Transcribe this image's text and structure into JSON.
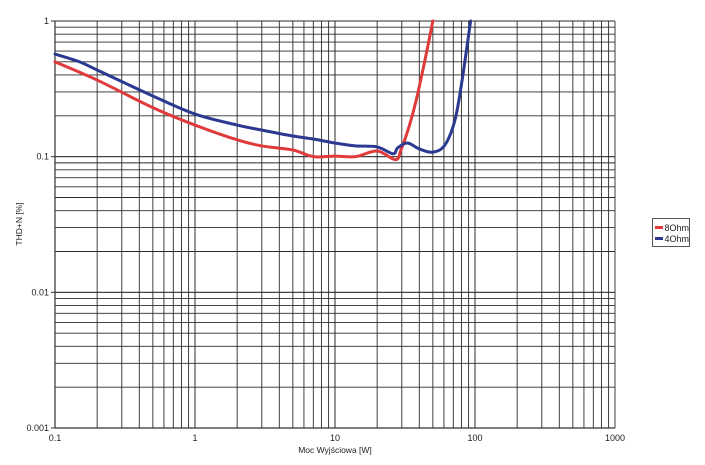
{
  "chart_data": {
    "type": "line",
    "title": "",
    "xlabel": "Moc Wyjściowa [W]",
    "ylabel": "THD+N [%]",
    "xscale": "log",
    "yscale": "log",
    "xlim": [
      0.1,
      1000
    ],
    "ylim": [
      0.001,
      1
    ],
    "x_ticks": [
      "0.1",
      "1",
      "10",
      "100",
      "1000"
    ],
    "y_ticks": [
      "0.001",
      "0.01",
      "0.1",
      "1"
    ],
    "grid": true,
    "legend_position": "right",
    "series": [
      {
        "name": "8Ohm",
        "color": "#e03a3a",
        "x": [
          0.1,
          0.2,
          0.5,
          1,
          2,
          3,
          5,
          7,
          10,
          14,
          20,
          27,
          29.6,
          34,
          38,
          44,
          50
        ],
        "y": [
          0.5,
          0.367,
          0.23,
          0.171,
          0.133,
          0.12,
          0.112,
          0.1,
          0.101,
          0.1,
          0.11,
          0.095,
          0.112,
          0.17,
          0.26,
          0.52,
          1.0
        ]
      },
      {
        "name": "4Ohm",
        "color": "#2b3990",
        "x": [
          0.1,
          0.15,
          0.2,
          0.5,
          1,
          2,
          3,
          5,
          7,
          10,
          14,
          20,
          26,
          28,
          33,
          40,
          50,
          61,
          72,
          81,
          93
        ],
        "y": [
          0.571,
          0.5,
          0.435,
          0.28,
          0.206,
          0.171,
          0.157,
          0.142,
          0.135,
          0.126,
          0.12,
          0.118,
          0.105,
          0.116,
          0.126,
          0.114,
          0.108,
          0.122,
          0.187,
          0.37,
          1.0
        ]
      }
    ]
  },
  "legend": {
    "items": [
      {
        "label": "8Ohm",
        "color": "#e03a3a"
      },
      {
        "label": "4Ohm",
        "color": "#2b3990"
      }
    ]
  }
}
